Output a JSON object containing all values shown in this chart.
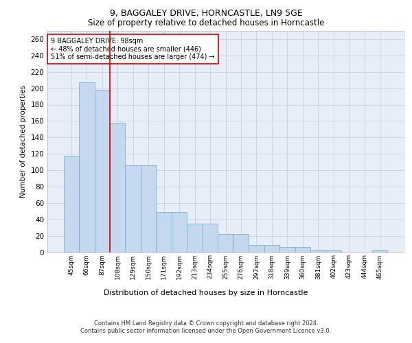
{
  "title": "9, BAGGALEY DRIVE, HORNCASTLE, LN9 5GE",
  "subtitle": "Size of property relative to detached houses in Horncastle",
  "xlabel": "Distribution of detached houses by size in Horncastle",
  "ylabel": "Number of detached properties",
  "categories": [
    "45sqm",
    "66sqm",
    "87sqm",
    "108sqm",
    "129sqm",
    "150sqm",
    "171sqm",
    "192sqm",
    "213sqm",
    "234sqm",
    "255sqm",
    "276sqm",
    "297sqm",
    "318sqm",
    "339sqm",
    "360sqm",
    "381sqm",
    "402sqm",
    "423sqm",
    "444sqm",
    "465sqm"
  ],
  "heights": [
    117,
    207,
    198,
    158,
    106,
    106,
    49,
    49,
    35,
    35,
    22,
    22,
    9,
    9,
    6,
    6,
    2,
    2,
    0,
    0,
    2
  ],
  "bar_color": "#c5d8f0",
  "bar_edge_color": "#7bafd4",
  "vline_x": 2.5,
  "vline_color": "#cc0000",
  "annotation_text": "9 BAGGALEY DRIVE: 98sqm\n← 48% of detached houses are smaller (446)\n51% of semi-detached houses are larger (474) →",
  "annotation_box_facecolor": "#ffffff",
  "annotation_box_edgecolor": "#cc0000",
  "grid_color": "#c8d4e8",
  "background_color": "#e8eef8",
  "ylim": [
    0,
    270
  ],
  "yticks": [
    0,
    20,
    40,
    60,
    80,
    100,
    120,
    140,
    160,
    180,
    200,
    220,
    240,
    260
  ],
  "title_fontsize": 9,
  "subtitle_fontsize": 8.5,
  "footer": "Contains HM Land Registry data © Crown copyright and database right 2024.\nContains public sector information licensed under the Open Government Licence v3.0."
}
